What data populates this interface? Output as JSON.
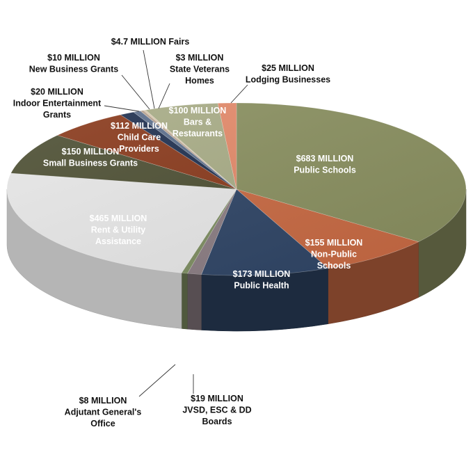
{
  "chart_data": {
    "type": "pie",
    "title": "",
    "slices": [
      {
        "value": 683,
        "lines": [
          "$683 MILLION",
          "Public Schools"
        ],
        "color": "#8a9060"
      },
      {
        "value": 155,
        "lines": [
          "$155 MILLION",
          "Non-Public",
          "Schools"
        ],
        "color": "#c96a43"
      },
      {
        "value": 173,
        "lines": [
          "$173 MILLION",
          "Public Health"
        ],
        "color": "#2f4566"
      },
      {
        "value": 19,
        "lines": [
          "$19 MILLION",
          "JVSD, ESC & DD",
          "Boards"
        ],
        "color": "#8c7e84"
      },
      {
        "value": 8,
        "lines": [
          "$8 MILLION",
          "Adjutant General's",
          "Office"
        ],
        "color": "#7f8f63"
      },
      {
        "value": 465,
        "lines": [
          "$465 MILLION",
          "Rent & Utility",
          "Assistance"
        ],
        "color": "#e8e8e8"
      },
      {
        "value": 150,
        "lines": [
          "$150 MILLION",
          "Small Business Grants"
        ],
        "color": "#4e5034"
      },
      {
        "value": 112,
        "lines": [
          "$112 MILLION",
          "Child Care",
          "Providers"
        ],
        "color": "#8a3a1c"
      },
      {
        "value": 20,
        "lines": [
          "$20 MILLION",
          "Indoor Entertainment",
          "Grants"
        ],
        "color": "#1f3050"
      },
      {
        "value": 10,
        "lines": [
          "$10 MILLION",
          "New Business Grants"
        ],
        "color": "#5c6f8c"
      },
      {
        "value": 4.7,
        "lines": [
          "$4.7 MILLION Fairs"
        ],
        "color": "#b8a390"
      },
      {
        "value": 3,
        "lines": [
          "$3 MILLION",
          "State Veterans",
          "Homes"
        ],
        "color": "#d8c6a8"
      },
      {
        "value": 100,
        "lines": [
          "$100 MILLION",
          "Bars &",
          "Restaurants"
        ],
        "color": "#a9ad87"
      },
      {
        "value": 25,
        "lines": [
          "$25 MILLION",
          "Lodging Businesses"
        ],
        "color": "#e48a6a"
      }
    ]
  }
}
